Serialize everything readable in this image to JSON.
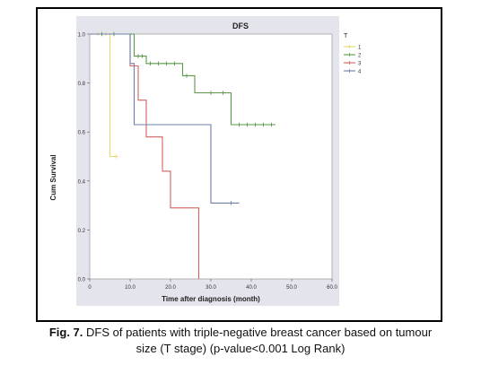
{
  "figure": {
    "caption_label": "Fig. 7.",
    "caption_line1": "DFS of patients with triple-negative breast cancer based on tumour",
    "caption_line2": "size (T stage) (p-value<0.001 Log Rank)"
  },
  "chart_data": {
    "type": "line",
    "step": true,
    "title": "DFS",
    "xlabel": "Time after diagnosis (month)",
    "ylabel": "Cum Survival",
    "xlim": [
      0,
      60
    ],
    "ylim": [
      0,
      1
    ],
    "xticks": [
      "0",
      "10.0",
      "20.0",
      "30.0",
      "40.0",
      "50.0",
      "60.0"
    ],
    "yticks": [
      "0.0",
      "0.2",
      "0.4",
      "0.6",
      "0.8",
      "1.0"
    ],
    "grid": false,
    "legend_title": "T",
    "legend_position": "right",
    "colors": {
      "plot_bg": "#e4e4ec",
      "yellow": "#e8d86a",
      "green": "#5a9a4a",
      "red": "#d46060",
      "blue": "#6f7fa8"
    },
    "series": [
      {
        "name": "1",
        "color": "#e8d86a",
        "points": [
          [
            0,
            1.0
          ],
          [
            5,
            1.0
          ],
          [
            5,
            0.5
          ],
          [
            7,
            0.5
          ]
        ],
        "censored": [
          [
            2,
            1.0
          ],
          [
            3,
            1.0
          ],
          [
            4,
            1.0
          ],
          [
            6.5,
            0.5
          ]
        ]
      },
      {
        "name": "2",
        "color": "#5a9a4a",
        "points": [
          [
            0,
            1.0
          ],
          [
            11,
            1.0
          ],
          [
            11,
            0.91
          ],
          [
            14,
            0.91
          ],
          [
            14,
            0.88
          ],
          [
            23,
            0.88
          ],
          [
            23,
            0.83
          ],
          [
            26,
            0.83
          ],
          [
            26,
            0.76
          ],
          [
            35,
            0.76
          ],
          [
            35,
            0.63
          ],
          [
            46,
            0.63
          ]
        ],
        "censored": [
          [
            3,
            1.0
          ],
          [
            6,
            1.0
          ],
          [
            12,
            0.91
          ],
          [
            13,
            0.91
          ],
          [
            15,
            0.88
          ],
          [
            17,
            0.88
          ],
          [
            19,
            0.88
          ],
          [
            21,
            0.88
          ],
          [
            24,
            0.83
          ],
          [
            30,
            0.76
          ],
          [
            33,
            0.76
          ],
          [
            37,
            0.63
          ],
          [
            39,
            0.63
          ],
          [
            41,
            0.63
          ],
          [
            43,
            0.63
          ],
          [
            45,
            0.63
          ]
        ]
      },
      {
        "name": "3",
        "color": "#d46060",
        "points": [
          [
            0,
            1.0
          ],
          [
            10,
            1.0
          ],
          [
            10,
            0.87
          ],
          [
            12,
            0.87
          ],
          [
            12,
            0.73
          ],
          [
            14,
            0.73
          ],
          [
            14,
            0.58
          ],
          [
            18,
            0.58
          ],
          [
            18,
            0.44
          ],
          [
            20,
            0.44
          ],
          [
            20,
            0.29
          ],
          [
            27,
            0.29
          ],
          [
            27,
            0.0
          ]
        ],
        "censored": [
          [
            11,
            0.87
          ]
        ]
      },
      {
        "name": "4",
        "color": "#6f7fa8",
        "points": [
          [
            0,
            1.0
          ],
          [
            10,
            1.0
          ],
          [
            10,
            0.88
          ],
          [
            11,
            0.88
          ],
          [
            11,
            0.63
          ],
          [
            30,
            0.63
          ],
          [
            30,
            0.31
          ],
          [
            37,
            0.31
          ]
        ],
        "censored": [
          [
            35,
            0.31
          ]
        ]
      }
    ]
  }
}
